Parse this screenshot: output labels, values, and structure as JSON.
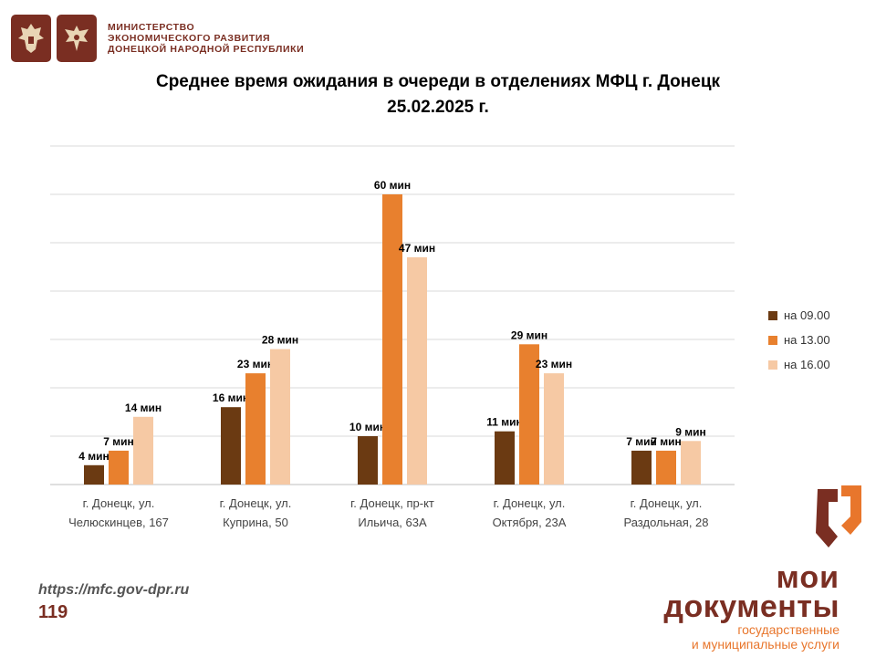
{
  "header": {
    "ministry_lines": [
      "МИНИСТЕРСТВО",
      "ЭКОНОМИЧЕСКОГО РАЗВИТИЯ",
      "ДОНЕЦКОЙ НАРОДНОЙ РЕСПУБЛИКИ"
    ],
    "emblem_icons": [
      "double-headed-eagle-emblem-icon",
      "dpr-eagle-emblem-icon"
    ]
  },
  "footer": {
    "url": "https://mfc.gov-dpr.ru",
    "page_number": "119"
  },
  "brand": {
    "line1": "мои",
    "line2": "документы",
    "sub1": "государственные",
    "sub2": "и муниципальные услуги",
    "logo_icon": "moi-dokumenty-logo-icon"
  },
  "chart_data": {
    "type": "bar",
    "title_line1": "Среднее время ожидания в очереди в отделениях МФЦ г. Донецк",
    "title_line2": "25.02.2025 г.",
    "categories": [
      [
        "г. Донецк, ул.",
        "Челюскинцев, 167"
      ],
      [
        "г. Донецк, ул.",
        "Куприна, 50"
      ],
      [
        "г. Донецк, пр-кт",
        "Ильича, 63А"
      ],
      [
        "г. Донецк, ул.",
        "Октября, 23А"
      ],
      [
        "г. Донецк, ул.",
        "Раздольная, 28"
      ]
    ],
    "series": [
      {
        "name": "на 09.00",
        "values": [
          4,
          16,
          10,
          11,
          7
        ],
        "color": "#6b3a12"
      },
      {
        "name": "на 13.00",
        "values": [
          7,
          23,
          60,
          29,
          7
        ],
        "color": "#e8802e"
      },
      {
        "name": "на 16.00",
        "values": [
          14,
          28,
          47,
          23,
          9
        ],
        "color": "#f6c9a4"
      }
    ],
    "value_suffix": " мин",
    "ylim": [
      0,
      70
    ],
    "grid": true,
    "legend_position": "right"
  }
}
